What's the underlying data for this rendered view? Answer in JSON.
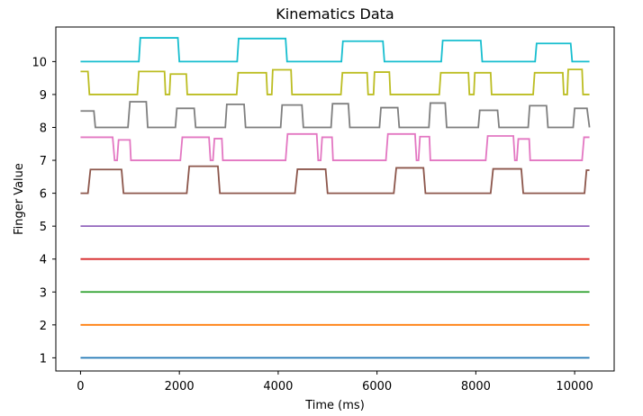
{
  "chart_data": {
    "type": "line",
    "title": "Kinematics Data",
    "xlabel": "Time (ms)",
    "ylabel": "Finger Value",
    "xlim": [
      -500,
      10800
    ],
    "ylim": [
      0.6,
      11.05
    ],
    "xticks": [
      0,
      2000,
      4000,
      6000,
      8000,
      10000
    ],
    "xtick_labels": [
      "0",
      "2000",
      "4000",
      "6000",
      "8000",
      "10000"
    ],
    "yticks": [
      1,
      2,
      3,
      4,
      5,
      6,
      7,
      8,
      9,
      10
    ],
    "ytick_labels": [
      "1",
      "2",
      "3",
      "4",
      "5",
      "6",
      "7",
      "8",
      "9",
      "10"
    ],
    "grid": false,
    "legend": false,
    "series": [
      {
        "color": "#1f77b4",
        "points": [
          [
            0,
            1.0
          ],
          [
            10300,
            1.0
          ]
        ]
      },
      {
        "color": "#ff7f0e",
        "points": [
          [
            0,
            2.0
          ],
          [
            10300,
            2.0
          ]
        ]
      },
      {
        "color": "#2ca02c",
        "points": [
          [
            0,
            3.0
          ],
          [
            10300,
            3.0
          ]
        ]
      },
      {
        "color": "#d62728",
        "points": [
          [
            0,
            4.0
          ],
          [
            10300,
            4.0
          ]
        ]
      },
      {
        "color": "#9467bd",
        "points": [
          [
            0,
            5.0
          ],
          [
            10300,
            5.0
          ]
        ]
      },
      {
        "color": "#8c564b",
        "points": [
          [
            0,
            6.0
          ],
          [
            150,
            6.0
          ],
          [
            200,
            6.72
          ],
          [
            830,
            6.72
          ],
          [
            870,
            6.0
          ],
          [
            2150,
            6.0
          ],
          [
            2200,
            6.82
          ],
          [
            2780,
            6.82
          ],
          [
            2820,
            6.0
          ],
          [
            4340,
            6.0
          ],
          [
            4390,
            6.73
          ],
          [
            4960,
            6.73
          ],
          [
            5000,
            6.0
          ],
          [
            6340,
            6.0
          ],
          [
            6390,
            6.77
          ],
          [
            6940,
            6.77
          ],
          [
            6980,
            6.0
          ],
          [
            8300,
            6.0
          ],
          [
            8350,
            6.74
          ],
          [
            8920,
            6.74
          ],
          [
            8960,
            6.0
          ],
          [
            10200,
            6.0
          ],
          [
            10240,
            6.7
          ],
          [
            10300,
            6.7
          ]
        ]
      },
      {
        "color": "#e377c2",
        "points": [
          [
            0,
            7.7
          ],
          [
            650,
            7.7
          ],
          [
            690,
            7.0
          ],
          [
            740,
            7.0
          ],
          [
            770,
            7.62
          ],
          [
            1000,
            7.62
          ],
          [
            1020,
            7.0
          ],
          [
            2020,
            7.0
          ],
          [
            2060,
            7.7
          ],
          [
            2600,
            7.7
          ],
          [
            2630,
            7.0
          ],
          [
            2680,
            7.0
          ],
          [
            2710,
            7.66
          ],
          [
            2860,
            7.66
          ],
          [
            2880,
            7.0
          ],
          [
            4150,
            7.0
          ],
          [
            4190,
            7.8
          ],
          [
            4780,
            7.8
          ],
          [
            4810,
            7.0
          ],
          [
            4860,
            7.0
          ],
          [
            4890,
            7.7
          ],
          [
            5090,
            7.7
          ],
          [
            5110,
            7.0
          ],
          [
            6180,
            7.0
          ],
          [
            6220,
            7.8
          ],
          [
            6770,
            7.8
          ],
          [
            6800,
            7.0
          ],
          [
            6840,
            7.0
          ],
          [
            6870,
            7.72
          ],
          [
            7060,
            7.72
          ],
          [
            7080,
            7.0
          ],
          [
            8200,
            7.0
          ],
          [
            8240,
            7.74
          ],
          [
            8760,
            7.74
          ],
          [
            8790,
            7.0
          ],
          [
            8830,
            7.0
          ],
          [
            8860,
            7.65
          ],
          [
            9080,
            7.65
          ],
          [
            9100,
            7.0
          ],
          [
            10150,
            7.0
          ],
          [
            10190,
            7.7
          ],
          [
            10300,
            7.7
          ]
        ]
      },
      {
        "color": "#7f7f7f",
        "points": [
          [
            0,
            8.5
          ],
          [
            270,
            8.5
          ],
          [
            300,
            8.0
          ],
          [
            960,
            8.0
          ],
          [
            1000,
            8.78
          ],
          [
            1330,
            8.78
          ],
          [
            1360,
            8.0
          ],
          [
            1920,
            8.0
          ],
          [
            1950,
            8.58
          ],
          [
            2300,
            8.58
          ],
          [
            2330,
            8.0
          ],
          [
            2930,
            8.0
          ],
          [
            2960,
            8.7
          ],
          [
            3310,
            8.7
          ],
          [
            3340,
            8.0
          ],
          [
            4050,
            8.0
          ],
          [
            4080,
            8.68
          ],
          [
            4480,
            8.68
          ],
          [
            4510,
            8.0
          ],
          [
            5070,
            8.0
          ],
          [
            5100,
            8.72
          ],
          [
            5420,
            8.72
          ],
          [
            5450,
            8.0
          ],
          [
            6050,
            8.0
          ],
          [
            6080,
            8.6
          ],
          [
            6420,
            8.6
          ],
          [
            6450,
            8.0
          ],
          [
            7050,
            8.0
          ],
          [
            7080,
            8.74
          ],
          [
            7380,
            8.74
          ],
          [
            7410,
            8.0
          ],
          [
            8050,
            8.0
          ],
          [
            8080,
            8.52
          ],
          [
            8440,
            8.52
          ],
          [
            8470,
            8.0
          ],
          [
            9060,
            8.0
          ],
          [
            9090,
            8.66
          ],
          [
            9430,
            8.66
          ],
          [
            9460,
            8.0
          ],
          [
            9970,
            8.0
          ],
          [
            10000,
            8.58
          ],
          [
            10250,
            8.58
          ],
          [
            10300,
            8.0
          ]
        ]
      },
      {
        "color": "#bcbd22",
        "points": [
          [
            0,
            9.7
          ],
          [
            150,
            9.7
          ],
          [
            180,
            9.0
          ],
          [
            1150,
            9.0
          ],
          [
            1180,
            9.7
          ],
          [
            1700,
            9.7
          ],
          [
            1720,
            9.0
          ],
          [
            1800,
            9.0
          ],
          [
            1820,
            9.62
          ],
          [
            2140,
            9.62
          ],
          [
            2160,
            9.0
          ],
          [
            3160,
            9.0
          ],
          [
            3190,
            9.66
          ],
          [
            3760,
            9.66
          ],
          [
            3780,
            9.0
          ],
          [
            3870,
            9.0
          ],
          [
            3890,
            9.75
          ],
          [
            4260,
            9.75
          ],
          [
            4280,
            9.0
          ],
          [
            5270,
            9.0
          ],
          [
            5300,
            9.66
          ],
          [
            5800,
            9.66
          ],
          [
            5820,
            9.0
          ],
          [
            5930,
            9.0
          ],
          [
            5950,
            9.68
          ],
          [
            6250,
            9.68
          ],
          [
            6270,
            9.0
          ],
          [
            7260,
            9.0
          ],
          [
            7290,
            9.66
          ],
          [
            7850,
            9.66
          ],
          [
            7870,
            9.0
          ],
          [
            7960,
            9.0
          ],
          [
            7980,
            9.66
          ],
          [
            8300,
            9.66
          ],
          [
            8320,
            9.0
          ],
          [
            9160,
            9.0
          ],
          [
            9190,
            9.66
          ],
          [
            9760,
            9.66
          ],
          [
            9780,
            9.0
          ],
          [
            9850,
            9.0
          ],
          [
            9870,
            9.76
          ],
          [
            10150,
            9.76
          ],
          [
            10170,
            9.0
          ],
          [
            10300,
            9.0
          ]
        ]
      },
      {
        "color": "#17becf",
        "points": [
          [
            0,
            10.0
          ],
          [
            1180,
            10.0
          ],
          [
            1210,
            10.72
          ],
          [
            1970,
            10.72
          ],
          [
            2000,
            10.0
          ],
          [
            3170,
            10.0
          ],
          [
            3200,
            10.7
          ],
          [
            4150,
            10.7
          ],
          [
            4180,
            10.0
          ],
          [
            5280,
            10.0
          ],
          [
            5310,
            10.62
          ],
          [
            6120,
            10.62
          ],
          [
            6150,
            10.0
          ],
          [
            7300,
            10.0
          ],
          [
            7330,
            10.64
          ],
          [
            8100,
            10.64
          ],
          [
            8130,
            10.0
          ],
          [
            9200,
            10.0
          ],
          [
            9230,
            10.55
          ],
          [
            9920,
            10.55
          ],
          [
            9950,
            10.0
          ],
          [
            10300,
            10.0
          ]
        ]
      }
    ]
  }
}
